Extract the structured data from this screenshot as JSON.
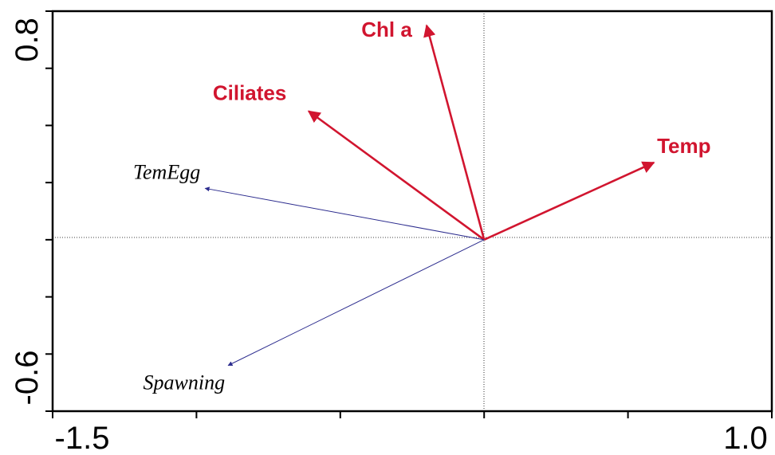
{
  "chart_data": {
    "type": "scatter",
    "title": "",
    "xlabel": "",
    "ylabel": "",
    "xlim": [
      -1.5,
      1.0
    ],
    "ylim": [
      -0.6,
      0.8
    ],
    "x_tick_labels": [
      "-1.5",
      "1.0"
    ],
    "y_tick_labels": [
      "-0.6",
      "0.8"
    ],
    "grid": false,
    "env_color": "#d1152f",
    "species_color": "#2c2c8e",
    "environmental_arrows": [
      {
        "label": "Chl a",
        "x": -0.2,
        "y": 0.75
      },
      {
        "label": "Ciliates",
        "x": -0.61,
        "y": 0.45
      },
      {
        "label": "Temp",
        "x": 0.59,
        "y": 0.27
      }
    ],
    "species_arrows": [
      {
        "label": "TemEgg",
        "x": -0.97,
        "y": 0.18
      },
      {
        "label": "Spawning",
        "x": -0.89,
        "y": -0.44
      }
    ]
  }
}
